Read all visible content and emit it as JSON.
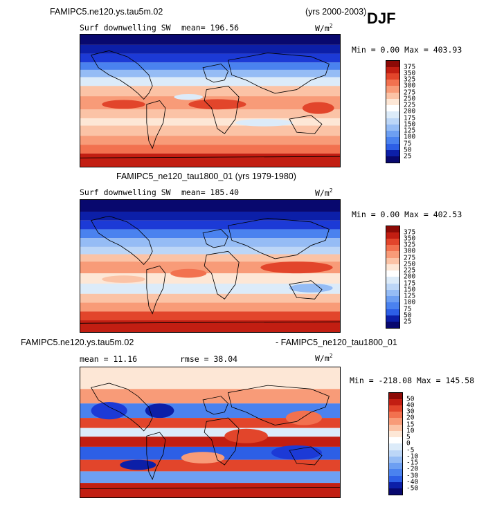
{
  "header": {
    "season": "DJF"
  },
  "panels": [
    {
      "title": "FAMIPC5.ne120.ys.tau5m.02",
      "title_right": "(yrs 2000-2003)",
      "variable": "Surf downwelling SW",
      "stat_text": "mean=  196.56",
      "units": "W/m",
      "units_sup": "2",
      "minmax": "Min =   0.00 Max = 403.93"
    },
    {
      "title": "FAMIPC5_ne120_tau1800_01 (yrs 1979-1980)",
      "variable": "Surf downwelling SW",
      "stat_text": "mean=  185.40",
      "units": "W/m",
      "units_sup": "2",
      "minmax": "Min =   0.00 Max = 402.53"
    },
    {
      "title_left": "FAMIPC5.ne120.ys.tau5m.02",
      "title_right": "- FAMIPC5_ne120_tau1800_01",
      "mean_text": "mean =  11.16",
      "rmse_text": "rmse =  38.04",
      "units": "W/m",
      "units_sup": "2",
      "minmax": "Min = -218.08 Max = 145.58"
    }
  ],
  "chart_data": [
    {
      "type": "heatmap",
      "title": "FAMIPC5.ne120.ys.tau5m.02 (yrs 2000-2003)",
      "variable": "Surf downwelling SW",
      "season": "DJF",
      "units": "W/m^2",
      "mean": 196.56,
      "min": 0.0,
      "max": 403.93,
      "levels": [
        25,
        50,
        75,
        100,
        125,
        150,
        175,
        200,
        225,
        250,
        275,
        300,
        325,
        350,
        375
      ],
      "colors": [
        "#08086e",
        "#0c1fa8",
        "#1c3ad6",
        "#2d5fe6",
        "#4a82ef",
        "#6d9ff2",
        "#95bcf5",
        "#bcd6f7",
        "#dcebf9",
        "#fde7d6",
        "#fbc3a6",
        "#f89b78",
        "#f2714f",
        "#e2452b",
        "#c21e12",
        "#8c0a06"
      ]
    },
    {
      "type": "heatmap",
      "title": "FAMIPC5_ne120_tau1800_01 (yrs 1979-1980)",
      "variable": "Surf downwelling SW",
      "season": "DJF",
      "units": "W/m^2",
      "mean": 185.4,
      "min": 0.0,
      "max": 402.53,
      "levels": [
        25,
        50,
        75,
        100,
        125,
        150,
        175,
        200,
        225,
        250,
        275,
        300,
        325,
        350,
        375
      ],
      "colors": [
        "#08086e",
        "#0c1fa8",
        "#1c3ad6",
        "#2d5fe6",
        "#4a82ef",
        "#6d9ff2",
        "#95bcf5",
        "#bcd6f7",
        "#dcebf9",
        "#fde7d6",
        "#fbc3a6",
        "#f89b78",
        "#f2714f",
        "#e2452b",
        "#c21e12",
        "#8c0a06"
      ]
    },
    {
      "type": "heatmap",
      "title": "FAMIPC5.ne120.ys.tau5m.02 - FAMIPC5_ne120_tau1800_01",
      "season": "DJF",
      "units": "W/m^2",
      "mean": 11.16,
      "rmse": 38.04,
      "min": -218.08,
      "max": 145.58,
      "levels": [
        -50,
        -40,
        -30,
        -20,
        -15,
        -10,
        -5,
        0,
        5,
        10,
        15,
        20,
        30,
        40,
        50
      ],
      "colors": [
        "#08086e",
        "#0c1fa8",
        "#1c3ad6",
        "#2d5fe6",
        "#4a82ef",
        "#6d9ff2",
        "#95bcf5",
        "#bcd6f7",
        "#dcebf9",
        "#fde7d6",
        "#fbc3a6",
        "#f89b78",
        "#f2714f",
        "#e2452b",
        "#c21e12",
        "#8c0a06"
      ]
    }
  ]
}
